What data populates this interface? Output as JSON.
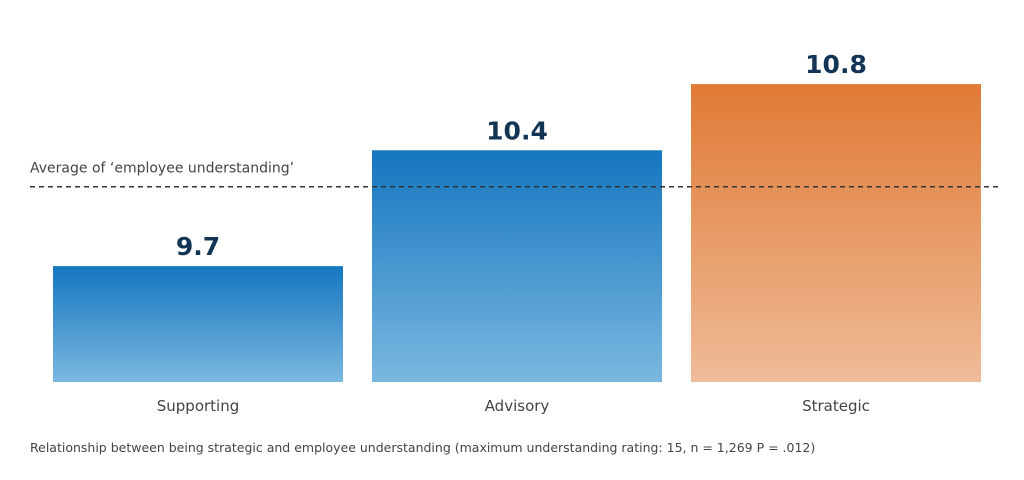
{
  "chart_data": {
    "type": "bar",
    "categories": [
      "Supporting",
      "Advisory",
      "Strategic"
    ],
    "values": [
      9.7,
      10.4,
      10.8
    ],
    "value_labels": [
      "9.7",
      "10.4",
      "10.8"
    ],
    "colors": [
      {
        "top": "#1576c0",
        "bottom": "#7ab8df"
      },
      {
        "top": "#1576c0",
        "bottom": "#7ab8df"
      },
      {
        "top": "#e07a35",
        "bottom": "#efbb98"
      }
    ],
    "reference_line": {
      "value": 10.18,
      "label": "Average of ‘employee understanding’",
      "style": "dashed",
      "color": "#333333"
    },
    "ylim": [
      9.0,
      11.0
    ],
    "grid": false,
    "legend": "none",
    "caption": "Relationship between being strategic and employee understanding (maximum understanding rating: 15, n = 1,269 P = .012)"
  }
}
